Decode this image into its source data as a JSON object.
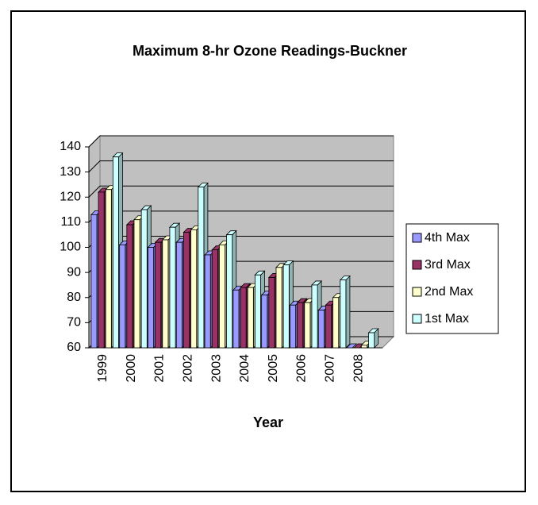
{
  "chart_data": {
    "type": "bar3d",
    "title": "Maximum 8-hr Ozone Readings-Buckner",
    "x_label": "Year",
    "categories": [
      "1999",
      "2000",
      "2001",
      "2002",
      "2003",
      "2004",
      "2005",
      "2006",
      "2007",
      "2008"
    ],
    "series": [
      {
        "name": "4th Max",
        "color": "#9999ff",
        "values": [
          113,
          101,
          100,
          102,
          97,
          83,
          81,
          77,
          75,
          60
        ]
      },
      {
        "name": "3rd Max",
        "color": "#993366",
        "values": [
          122,
          109,
          102,
          106,
          99,
          84,
          88,
          78,
          77,
          60
        ]
      },
      {
        "name": "2nd Max",
        "color": "#ffffcc",
        "values": [
          123,
          111,
          103,
          107,
          101,
          84,
          92,
          78,
          80,
          61
        ]
      },
      {
        "name": "1st Max",
        "color": "#ccffff",
        "values": [
          136,
          115,
          108,
          124,
          105,
          89,
          93,
          85,
          87,
          66
        ]
      }
    ],
    "ylim": [
      60,
      140
    ],
    "yticks": [
      60,
      70,
      80,
      90,
      100,
      110,
      120,
      130,
      140
    ],
    "grid": true,
    "legend": "right"
  }
}
